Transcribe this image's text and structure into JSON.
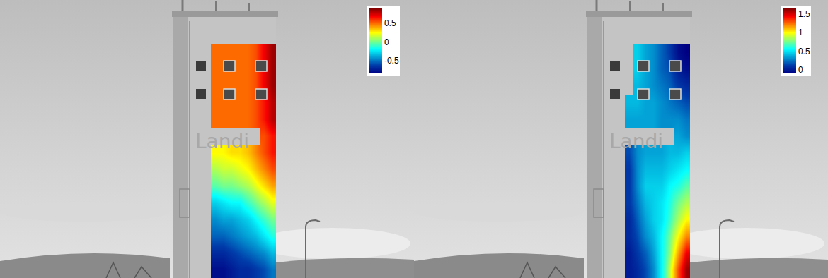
{
  "chart_data": [
    {
      "type": "heatmap",
      "color": "Jet",
      "tick_labels": false,
      "annotations": [
        {
          "text": "Landi"
        }
      ],
      "zlim": [
        -0.85,
        0.9
      ],
      "zticks": [
        -0.5,
        0,
        0.5
      ],
      "cells": [
        [
          -0.8,
          -0.8,
          -0.75,
          -0.7,
          -0.7,
          -0.65,
          -0.6,
          -0.5
        ],
        [
          -0.7,
          -0.7,
          -0.65,
          -0.6,
          -0.55,
          -0.5,
          -0.45,
          -0.35
        ],
        [
          -0.55,
          -0.55,
          -0.5,
          -0.45,
          -0.4,
          -0.35,
          -0.25,
          -0.15
        ],
        [
          -0.45,
          -0.4,
          -0.4,
          -0.35,
          -0.3,
          -0.2,
          -0.1,
          0.0
        ],
        [
          -0.3,
          -0.25,
          -0.2,
          -0.2,
          -0.1,
          0.0,
          0.1,
          0.2
        ],
        [
          -0.05,
          0.0,
          0.0,
          0.05,
          0.1,
          0.2,
          0.3,
          0.4
        ],
        [
          0.1,
          0.15,
          0.15,
          0.2,
          0.25,
          0.35,
          0.45,
          0.55
        ],
        [
          0.25,
          0.25,
          0.3,
          0.3,
          0.35,
          0.45,
          0.55,
          0.65
        ],
        [
          null,
          null,
          null,
          null,
          null,
          null,
          0.55,
          0.65
        ],
        [
          0.5,
          0.5,
          0.5,
          0.5,
          0.5,
          0.55,
          0.65,
          0.8
        ],
        [
          0.5,
          0.5,
          0.5,
          0.5,
          0.5,
          0.55,
          0.65,
          0.8
        ],
        [
          0.5,
          0.5,
          0.5,
          0.5,
          0.5,
          0.55,
          0.7,
          0.85
        ],
        [
          0.5,
          0.5,
          0.5,
          0.5,
          0.5,
          0.55,
          0.7,
          0.85
        ],
        [
          0.5,
          0.5,
          0.5,
          0.5,
          0.5,
          0.55,
          0.7,
          0.85
        ]
      ]
    },
    {
      "type": "heatmap",
      "color": "Jet",
      "tick_labels": false,
      "annotations": [
        {
          "text": "Landi"
        }
      ],
      "zlim": [
        -0.1,
        1.65
      ],
      "zticks": [
        0,
        0.5,
        1,
        1.5
      ],
      "cells": [
        [
          0.0,
          0.05,
          0.15,
          0.3,
          0.55,
          0.9,
          1.3,
          1.6
        ],
        [
          0.0,
          0.1,
          0.2,
          0.35,
          0.55,
          0.8,
          1.15,
          1.45
        ],
        [
          0.05,
          0.15,
          0.3,
          0.4,
          0.55,
          0.75,
          1.0,
          1.2
        ],
        [
          0.05,
          0.2,
          0.35,
          0.45,
          0.5,
          0.65,
          0.85,
          1.0
        ],
        [
          0.1,
          0.25,
          0.4,
          0.45,
          0.5,
          0.6,
          0.75,
          0.85
        ],
        [
          0.1,
          0.3,
          0.45,
          0.45,
          0.45,
          0.55,
          0.6,
          0.7
        ],
        [
          0.1,
          0.3,
          0.4,
          0.4,
          0.4,
          0.45,
          0.5,
          0.55
        ],
        [
          0.15,
          0.3,
          0.35,
          0.35,
          0.35,
          0.4,
          0.4,
          0.45
        ],
        [
          null,
          null,
          null,
          null,
          null,
          null,
          0.35,
          0.3
        ],
        [
          0.35,
          0.35,
          0.35,
          0.35,
          0.3,
          0.3,
          0.3,
          0.25
        ],
        [
          0.4,
          0.4,
          0.35,
          0.35,
          0.3,
          0.25,
          0.2,
          0.15
        ],
        [
          null,
          0.4,
          0.35,
          0.3,
          0.25,
          0.2,
          0.1,
          0.05
        ],
        [
          null,
          0.45,
          0.35,
          0.3,
          0.2,
          0.15,
          0.0,
          -0.05
        ],
        [
          null,
          0.45,
          0.35,
          0.3,
          0.2,
          0.1,
          -0.05,
          -0.1
        ]
      ]
    }
  ]
}
